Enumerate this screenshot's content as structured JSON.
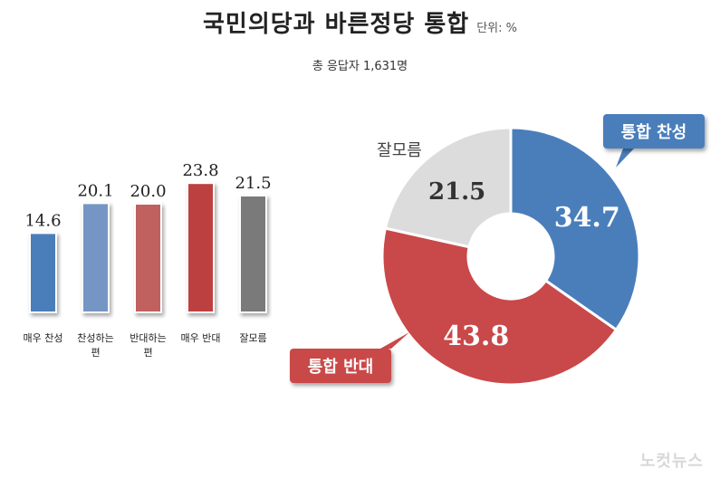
{
  "header": {
    "title": "국민의당과 바른정당 통합",
    "unit": "단위: %",
    "subtitle": "총 응답자 1,631명"
  },
  "watermark": "노컷뉴스",
  "chart_data": [
    {
      "type": "bar",
      "categories": [
        [
          "매우 찬성"
        ],
        [
          "찬성하는",
          "편"
        ],
        [
          "반대하는",
          "편"
        ],
        [
          "매우 반대"
        ],
        [
          "잘모름"
        ]
      ],
      "values": [
        14.6,
        20.1,
        20.0,
        23.8,
        21.5
      ],
      "value_labels": [
        "14.6",
        "20.1",
        "20.0",
        "23.8",
        "21.5"
      ],
      "colors": [
        "#4a7ebb",
        "#7496c4",
        "#c0605f",
        "#bd4141",
        "#7a7a7a"
      ],
      "ylim": [
        0,
        25
      ]
    },
    {
      "type": "pie",
      "style": "donut",
      "slices": [
        {
          "label": "통합 찬성",
          "value": 34.7,
          "value_label": "34.7",
          "color": "#4a7ebb"
        },
        {
          "label": "통합 반대",
          "value": 43.8,
          "value_label": "43.8",
          "color": "#c9484a"
        },
        {
          "label": "잘모름",
          "value": 21.5,
          "value_label": "21.5",
          "color": "#dcdcdc"
        }
      ]
    }
  ]
}
